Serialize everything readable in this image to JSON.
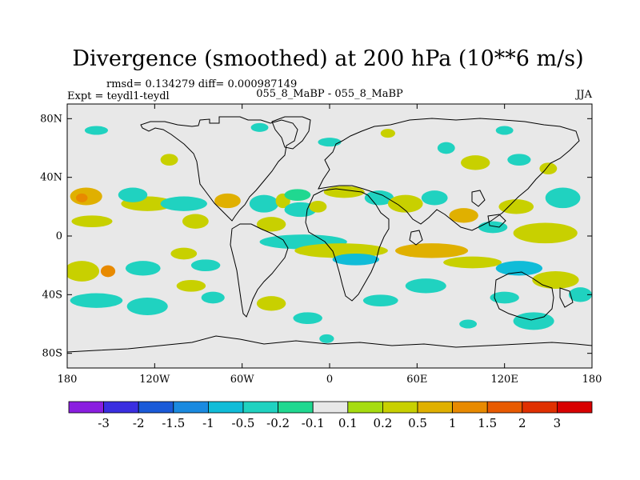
{
  "chart_data": {
    "type": "heatmap",
    "title": "Divergence (smoothed) at 200 hPa (10**6 m/s)",
    "stats_label": "rmsd= 0.134279 diff= 0.000987149",
    "left_label": "Expt = teydl1-teydl",
    "center_label": "055_8_MaBP - 055_8_MaBP",
    "right_label": "JJA",
    "x_ticks": [
      {
        "lon": -180,
        "label": "180"
      },
      {
        "lon": -120,
        "label": "120W"
      },
      {
        "lon": -60,
        "label": "60W"
      },
      {
        "lon": 0,
        "label": "0"
      },
      {
        "lon": 60,
        "label": "60E"
      },
      {
        "lon": 120,
        "label": "120E"
      },
      {
        "lon": 180,
        "label": "180"
      }
    ],
    "y_ticks": [
      {
        "lat": 80,
        "label": "80N"
      },
      {
        "lat": 40,
        "label": "40N"
      },
      {
        "lat": 0,
        "label": "0"
      },
      {
        "lat": -40,
        "label": "40S"
      },
      {
        "lat": -80,
        "label": "80S"
      }
    ],
    "lon_range": [
      -180,
      180
    ],
    "lat_range": [
      -90,
      90
    ],
    "colorbar": {
      "levels": [
        "-3",
        "-2",
        "-1.5",
        "-1",
        "-0.5",
        "-0.2",
        "-0.1",
        "0.1",
        "0.2",
        "0.5",
        "1",
        "1.5",
        "2",
        "3"
      ],
      "colors": [
        "#8a1ee0",
        "#3a2ee0",
        "#1a5ad8",
        "#1a8ae0",
        "#10bcd8",
        "#20d2c0",
        "#20d890",
        "#e8e8e8",
        "#a6dc10",
        "#c8d000",
        "#e0b000",
        "#e88a00",
        "#e85a00",
        "#e03000",
        "#d80000"
      ]
    },
    "features": [
      {
        "lon": -167,
        "lat": 27,
        "rx": 11,
        "ry": 6,
        "class": 10
      },
      {
        "lon": -170,
        "lat": 26,
        "rx": 4,
        "ry": 3,
        "class": 11
      },
      {
        "lon": -163,
        "lat": 10,
        "rx": 14,
        "ry": 4,
        "class": 9
      },
      {
        "lon": -125,
        "lat": 22,
        "rx": 18,
        "ry": 5,
        "class": 9
      },
      {
        "lon": -135,
        "lat": 28,
        "rx": 10,
        "ry": 5,
        "class": 5
      },
      {
        "lon": -100,
        "lat": 22,
        "rx": 16,
        "ry": 5,
        "class": 5
      },
      {
        "lon": -92,
        "lat": 10,
        "rx": 9,
        "ry": 5,
        "class": 9
      },
      {
        "lon": -70,
        "lat": 24,
        "rx": 9,
        "ry": 5,
        "class": 10
      },
      {
        "lon": -45,
        "lat": 22,
        "rx": 10,
        "ry": 6,
        "class": 5
      },
      {
        "lon": -32,
        "lat": 24,
        "rx": 5,
        "ry": 5,
        "class": 9
      },
      {
        "lon": -22,
        "lat": 28,
        "rx": 9,
        "ry": 4,
        "class": 6
      },
      {
        "lon": -40,
        "lat": 8,
        "rx": 10,
        "ry": 5,
        "class": 9
      },
      {
        "lon": -20,
        "lat": 18,
        "rx": 11,
        "ry": 5,
        "class": 5
      },
      {
        "lon": -8,
        "lat": 20,
        "rx": 6,
        "ry": 4,
        "class": 9
      },
      {
        "lon": 10,
        "lat": 30,
        "rx": 14,
        "ry": 4,
        "class": 9
      },
      {
        "lon": 34,
        "lat": 26,
        "rx": 10,
        "ry": 5,
        "class": 5
      },
      {
        "lon": 52,
        "lat": 22,
        "rx": 12,
        "ry": 6,
        "class": 9
      },
      {
        "lon": 72,
        "lat": 26,
        "rx": 9,
        "ry": 5,
        "class": 5
      },
      {
        "lon": 92,
        "lat": 14,
        "rx": 10,
        "ry": 5,
        "class": 10
      },
      {
        "lon": 128,
        "lat": 20,
        "rx": 12,
        "ry": 5,
        "class": 9
      },
      {
        "lon": 148,
        "lat": 2,
        "rx": 22,
        "ry": 7,
        "class": 9
      },
      {
        "lon": 160,
        "lat": 26,
        "rx": 12,
        "ry": 7,
        "class": 5
      },
      {
        "lon": 112,
        "lat": 6,
        "rx": 10,
        "ry": 4,
        "class": 5
      },
      {
        "lon": -18,
        "lat": -4,
        "rx": 30,
        "ry": 5,
        "class": 5
      },
      {
        "lon": 8,
        "lat": -10,
        "rx": 32,
        "ry": 5,
        "class": 9
      },
      {
        "lon": 18,
        "lat": -16,
        "rx": 16,
        "ry": 4,
        "class": 4
      },
      {
        "lon": 70,
        "lat": -10,
        "rx": 25,
        "ry": 5,
        "class": 10
      },
      {
        "lon": 98,
        "lat": -18,
        "rx": 20,
        "ry": 4,
        "class": 9
      },
      {
        "lon": -170,
        "lat": -24,
        "rx": 12,
        "ry": 7,
        "class": 9
      },
      {
        "lon": -152,
        "lat": -24,
        "rx": 5,
        "ry": 4,
        "class": 11
      },
      {
        "lon": -128,
        "lat": -22,
        "rx": 12,
        "ry": 5,
        "class": 5
      },
      {
        "lon": -100,
        "lat": -12,
        "rx": 9,
        "ry": 4,
        "class": 9
      },
      {
        "lon": -85,
        "lat": -20,
        "rx": 10,
        "ry": 4,
        "class": 5
      },
      {
        "lon": -160,
        "lat": -44,
        "rx": 18,
        "ry": 5,
        "class": 5
      },
      {
        "lon": -125,
        "lat": -48,
        "rx": 14,
        "ry": 6,
        "class": 5
      },
      {
        "lon": -95,
        "lat": -34,
        "rx": 10,
        "ry": 4,
        "class": 9
      },
      {
        "lon": -80,
        "lat": -42,
        "rx": 8,
        "ry": 4,
        "class": 5
      },
      {
        "lon": -40,
        "lat": -46,
        "rx": 10,
        "ry": 5,
        "class": 9
      },
      {
        "lon": -15,
        "lat": -56,
        "rx": 10,
        "ry": 4,
        "class": 5
      },
      {
        "lon": 35,
        "lat": -44,
        "rx": 12,
        "ry": 4,
        "class": 5
      },
      {
        "lon": 66,
        "lat": -34,
        "rx": 14,
        "ry": 5,
        "class": 5
      },
      {
        "lon": 130,
        "lat": -22,
        "rx": 16,
        "ry": 5,
        "class": 4
      },
      {
        "lon": 155,
        "lat": -30,
        "rx": 16,
        "ry": 6,
        "class": 9
      },
      {
        "lon": 120,
        "lat": -42,
        "rx": 10,
        "ry": 4,
        "class": 5
      },
      {
        "lon": 172,
        "lat": -40,
        "rx": 8,
        "ry": 5,
        "class": 5
      },
      {
        "lon": 140,
        "lat": -58,
        "rx": 14,
        "ry": 6,
        "class": 5
      },
      {
        "lon": 95,
        "lat": -60,
        "rx": 6,
        "ry": 3,
        "class": 5
      },
      {
        "lon": -2,
        "lat": -70,
        "rx": 5,
        "ry": 3,
        "class": 5
      },
      {
        "lon": -160,
        "lat": 72,
        "rx": 8,
        "ry": 3,
        "class": 5
      },
      {
        "lon": -48,
        "lat": 74,
        "rx": 6,
        "ry": 3,
        "class": 5
      },
      {
        "lon": 0,
        "lat": 64,
        "rx": 8,
        "ry": 3,
        "class": 5
      },
      {
        "lon": 40,
        "lat": 70,
        "rx": 5,
        "ry": 3,
        "class": 9
      },
      {
        "lon": 80,
        "lat": 60,
        "rx": 6,
        "ry": 4,
        "class": 5
      },
      {
        "lon": 100,
        "lat": 50,
        "rx": 10,
        "ry": 5,
        "class": 9
      },
      {
        "lon": 130,
        "lat": 52,
        "rx": 8,
        "ry": 4,
        "class": 5
      },
      {
        "lon": 150,
        "lat": 46,
        "rx": 6,
        "ry": 4,
        "class": 9
      },
      {
        "lon": 120,
        "lat": 72,
        "rx": 6,
        "ry": 3,
        "class": 5
      },
      {
        "lon": -110,
        "lat": 52,
        "rx": 6,
        "ry": 4,
        "class": 9
      }
    ]
  }
}
